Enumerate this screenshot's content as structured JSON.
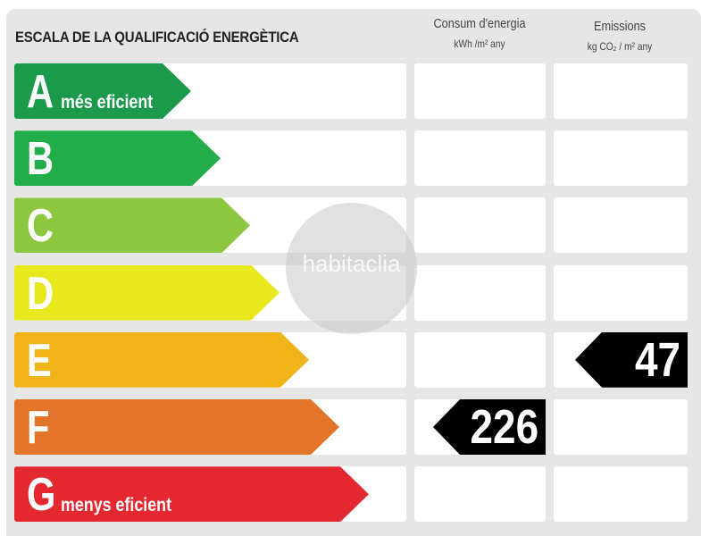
{
  "title": "ESCALA DE LA QUALIFICACIÓ ENERGÈTICA",
  "columns": {
    "consum": {
      "label": "Consum d'energia",
      "unit": "kWh /m² any"
    },
    "emissions": {
      "label": "Emissions",
      "unit": "kg CO₂ / m² any"
    }
  },
  "ratings": [
    {
      "letter": "A",
      "label": "més eficient",
      "color": "#1a9a4a"
    },
    {
      "letter": "B",
      "label": "",
      "color": "#22ad4a"
    },
    {
      "letter": "C",
      "label": "",
      "color": "#8dc63f"
    },
    {
      "letter": "D",
      "label": "",
      "color": "#e8e81e"
    },
    {
      "letter": "E",
      "label": "",
      "color": "#f0b41a"
    },
    {
      "letter": "F",
      "label": "",
      "color": "#e2752a"
    },
    {
      "letter": "G",
      "label": "menys eficient",
      "color": "#e3292f"
    }
  ],
  "consum_value": {
    "rating": "F",
    "value": "226"
  },
  "emissions_value": {
    "rating": "E",
    "value": "47"
  },
  "watermark": "habitaclia"
}
